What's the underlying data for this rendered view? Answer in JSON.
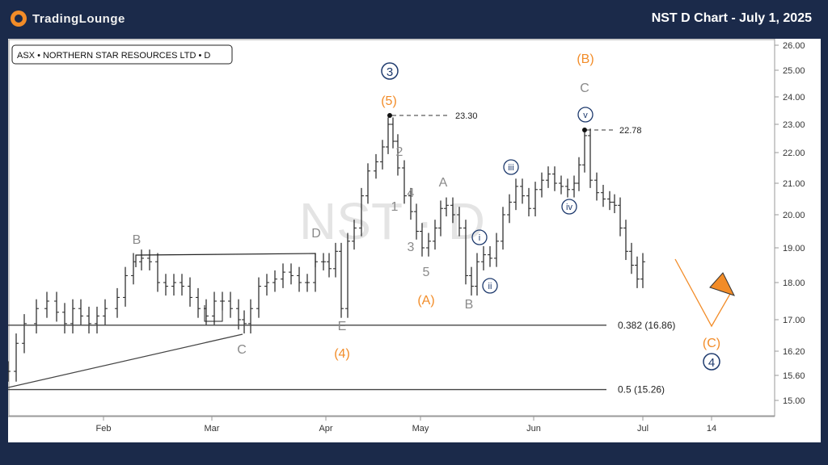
{
  "brand": {
    "logo_text": "TradingLounge"
  },
  "header": {
    "title": "NST D Chart - July 1, 2025"
  },
  "chart_data": {
    "type": "candlestick",
    "symbol_label": "ASX • NORTHERN STAR RESOURCES LTD • D",
    "watermark": "NST · D",
    "y_ticks": [
      "26.00",
      "25.00",
      "24.00",
      "23.00",
      "22.00",
      "21.00",
      "20.00",
      "19.00",
      "18.00",
      "17.00",
      "16.20",
      "15.60",
      "15.00"
    ],
    "y_tick_values": [
      26.0,
      25.0,
      24.0,
      23.0,
      22.0,
      21.0,
      20.0,
      19.0,
      18.0,
      17.0,
      16.2,
      15.6,
      15.0
    ],
    "x_ticks": [
      "Feb",
      "Mar",
      "Apr",
      "May",
      "Jun",
      "Jul",
      "14"
    ],
    "fib_levels": [
      {
        "label": "0.382 (16.86)",
        "value": 16.86
      },
      {
        "label": "0.5 (15.26)",
        "value": 15.26
      }
    ],
    "price_labels": [
      {
        "label": "23.30",
        "value": 23.3
      },
      {
        "label": "22.78",
        "value": 22.78
      }
    ],
    "wave_labels": {
      "B_left": "B",
      "C_left": "C",
      "D": "D",
      "E": "E",
      "four_paren": "(4)",
      "five_paren": "(5)",
      "three_circ": "3",
      "w2": "2",
      "w1": "1",
      "w4": "4",
      "w3": "3",
      "w5": "5",
      "A_paren": "(A)",
      "A": "A",
      "B_mid": "B",
      "i": "i",
      "ii": "ii",
      "iii": "iii",
      "iv": "iv",
      "v": "v",
      "C_top": "C",
      "B_paren": "(B)",
      "C_paren": "(C)",
      "four_circ": "4"
    },
    "colors": {
      "orange": "#f28c28",
      "gray": "#8a8a8a",
      "navy": "#1f3b6e",
      "candle": "#222222"
    }
  }
}
